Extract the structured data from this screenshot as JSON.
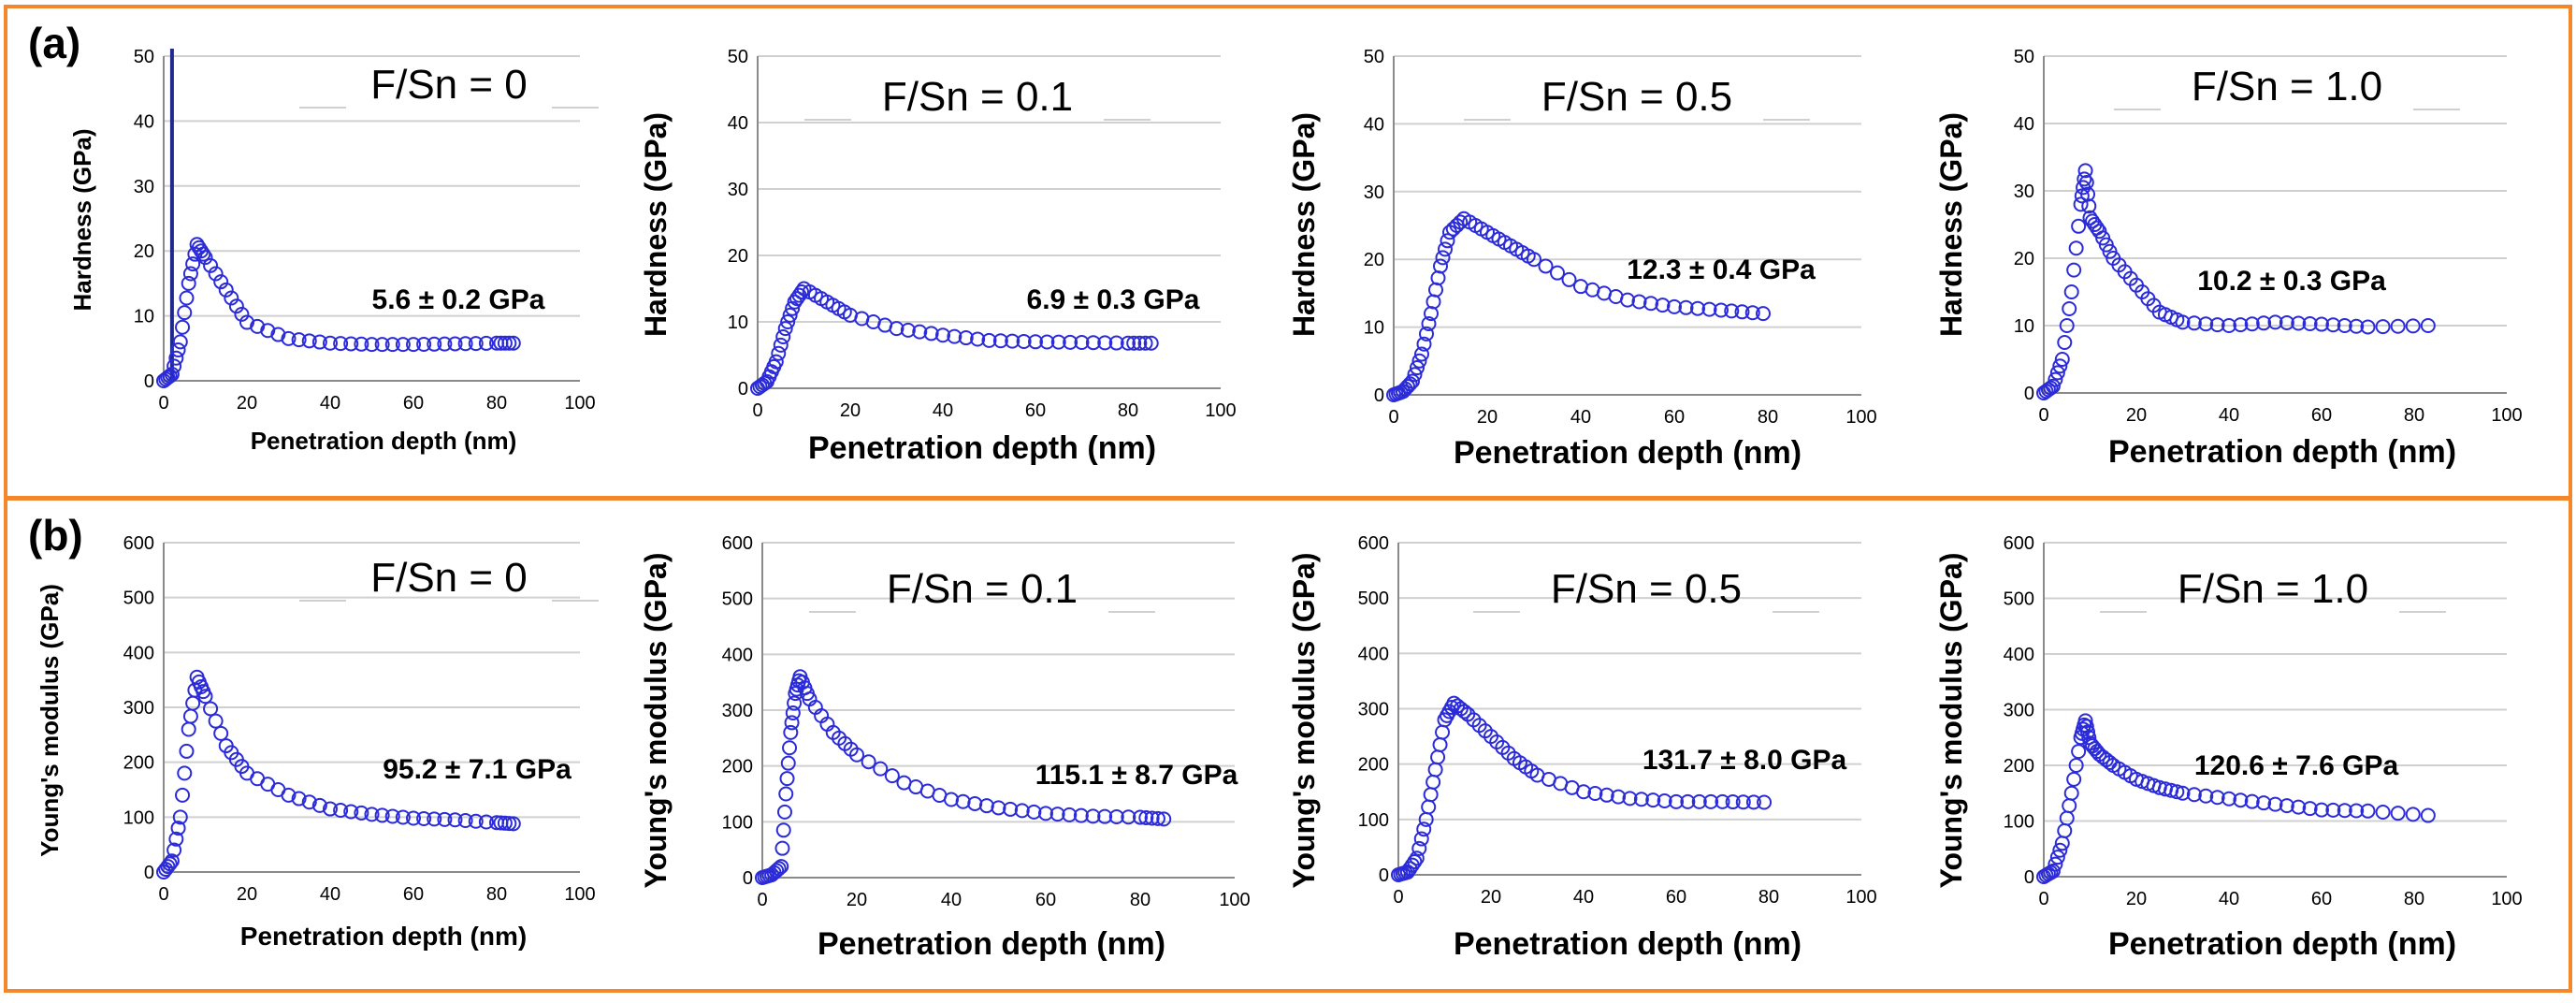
{
  "panels": [
    {
      "label": "(a)",
      "frame_color": "#f4862b"
    },
    {
      "label": "(b)",
      "frame_color": "#f4862b"
    }
  ],
  "marker_color": "#2b2bd9",
  "chart_data": [
    {
      "type": "scatter",
      "panel": "(a)",
      "title": "F/Sn = 0",
      "xlabel": "Penetration depth (nm)",
      "ylabel": "Hardness (GPa)",
      "xlim": [
        0,
        100
      ],
      "ylim": [
        0,
        50
      ],
      "xticks": [
        0,
        20,
        40,
        60,
        80,
        100
      ],
      "yticks": [
        0,
        10,
        20,
        30,
        40,
        50
      ],
      "annotation": "5.6 ± 0.2 GPa",
      "vline_x": 2,
      "series": [
        {
          "name": "F/Sn = 0",
          "x": [
            0,
            2,
            4,
            6,
            8,
            10,
            15,
            20,
            30,
            40,
            50,
            60,
            70,
            80,
            84
          ],
          "y": [
            0,
            1,
            6,
            15,
            21,
            19,
            14,
            9,
            6.5,
            5.8,
            5.6,
            5.6,
            5.7,
            5.8,
            5.8
          ]
        }
      ]
    },
    {
      "type": "scatter",
      "panel": "(a)",
      "title": "F/Sn = 0.1",
      "xlabel": "Penetration depth (nm)",
      "ylabel": "Hardness (GPa)",
      "xlim": [
        0,
        100
      ],
      "ylim": [
        0,
        50
      ],
      "xticks": [
        0,
        20,
        40,
        60,
        80,
        100
      ],
      "yticks": [
        0,
        10,
        20,
        30,
        40,
        50
      ],
      "annotation": "6.9 ± 0.3 GPa",
      "series": [
        {
          "name": "F/Sn = 0.1",
          "x": [
            0,
            2,
            4,
            6,
            8,
            10,
            15,
            20,
            30,
            40,
            50,
            60,
            70,
            80,
            85
          ],
          "y": [
            0,
            1,
            4,
            9,
            13,
            15,
            13,
            11,
            9,
            8,
            7.2,
            7,
            6.9,
            6.8,
            6.8
          ]
        }
      ]
    },
    {
      "type": "scatter",
      "panel": "(a)",
      "title": "F/Sn = 0.5",
      "xlabel": "Penetration depth (nm)",
      "ylabel": "Hardness (GPa)",
      "xlim": [
        0,
        100
      ],
      "ylim": [
        0,
        50
      ],
      "xticks": [
        0,
        20,
        40,
        60,
        80,
        100
      ],
      "yticks": [
        0,
        10,
        20,
        30,
        40,
        50
      ],
      "annotation": "12.3 ± 0.4 GPa",
      "series": [
        {
          "name": "F/Sn = 0.5",
          "x": [
            0,
            2,
            4,
            6,
            8,
            10,
            12,
            15,
            20,
            25,
            30,
            40,
            50,
            60,
            70,
            79
          ],
          "y": [
            0,
            0.5,
            2,
            6,
            12,
            19,
            24,
            26,
            24,
            22,
            20,
            16,
            14,
            13,
            12.5,
            12
          ]
        }
      ]
    },
    {
      "type": "scatter",
      "panel": "(a)",
      "title": "F/Sn = 1.0",
      "xlabel": "Penetration depth (nm)",
      "ylabel": "Hardness (GPa)",
      "xlim": [
        0,
        100
      ],
      "ylim": [
        0,
        50
      ],
      "xticks": [
        0,
        20,
        40,
        60,
        80,
        100
      ],
      "yticks": [
        0,
        10,
        20,
        30,
        40,
        50
      ],
      "annotation": "10.2 ± 0.3 GPa",
      "series": [
        {
          "name": "F/Sn = 1.0",
          "x": [
            0,
            2,
            4,
            6,
            8,
            9,
            10,
            12,
            15,
            20,
            25,
            30,
            40,
            50,
            60,
            70,
            83
          ],
          "y": [
            0,
            1,
            5,
            15,
            28,
            33,
            26,
            24,
            20,
            16,
            12,
            10.5,
            10,
            10.5,
            10.2,
            9.8,
            10
          ]
        }
      ]
    },
    {
      "type": "scatter",
      "panel": "(b)",
      "title": "F/Sn = 0",
      "xlabel": "Penetration depth (nm)",
      "ylabel": "Young's modulus (GPa)",
      "xlim": [
        0,
        100
      ],
      "ylim": [
        0,
        600
      ],
      "xticks": [
        0,
        20,
        40,
        60,
        80,
        100
      ],
      "yticks": [
        0,
        100,
        200,
        300,
        400,
        500,
        600
      ],
      "annotation": "95.2 ± 7.1 GPa",
      "series": [
        {
          "name": "F/Sn = 0",
          "x": [
            0,
            2,
            4,
            6,
            8,
            10,
            15,
            20,
            30,
            40,
            50,
            60,
            70,
            80,
            84
          ],
          "y": [
            0,
            20,
            100,
            260,
            355,
            320,
            230,
            180,
            140,
            115,
            105,
            98,
            95,
            90,
            88
          ]
        }
      ]
    },
    {
      "type": "scatter",
      "panel": "(b)",
      "title": "F/Sn = 0.1",
      "xlabel": "Penetration depth (nm)",
      "ylabel": "Young's modulus (GPa)",
      "xlim": [
        0,
        100
      ],
      "ylim": [
        0,
        600
      ],
      "xticks": [
        0,
        20,
        40,
        60,
        80,
        100
      ],
      "yticks": [
        0,
        100,
        200,
        300,
        400,
        500,
        600
      ],
      "annotation": "115.1 ± 8.7 GPa",
      "series": [
        {
          "name": "F/Sn = 0.1",
          "x": [
            0,
            2,
            4,
            5,
            6,
            7,
            8,
            10,
            15,
            20,
            30,
            40,
            50,
            60,
            70,
            80,
            85
          ],
          "y": [
            0,
            5,
            20,
            150,
            260,
            330,
            360,
            320,
            260,
            220,
            170,
            140,
            125,
            115,
            110,
            108,
            105
          ]
        }
      ]
    },
    {
      "type": "scatter",
      "panel": "(b)",
      "title": "F/Sn = 0.5",
      "xlabel": "Penetration depth (nm)",
      "ylabel": "Young's modulus (GPa)",
      "xlim": [
        0,
        100
      ],
      "ylim": [
        0,
        600
      ],
      "xticks": [
        0,
        20,
        40,
        60,
        80,
        100
      ],
      "yticks": [
        0,
        100,
        200,
        300,
        400,
        500,
        600
      ],
      "annotation": "131.7 ± 8.0 GPa",
      "series": [
        {
          "name": "F/Sn = 0.5",
          "x": [
            0,
            2,
            4,
            6,
            8,
            10,
            12,
            15,
            20,
            25,
            30,
            40,
            50,
            60,
            70,
            79
          ],
          "y": [
            0,
            5,
            30,
            100,
            190,
            280,
            310,
            290,
            250,
            210,
            180,
            150,
            138,
            132,
            132,
            131
          ]
        }
      ]
    },
    {
      "type": "scatter",
      "panel": "(b)",
      "title": "F/Sn = 1.0",
      "xlabel": "Penetration depth (nm)",
      "ylabel": "Young's modulus (GPa)",
      "xlim": [
        0,
        100
      ],
      "ylim": [
        0,
        600
      ],
      "xticks": [
        0,
        20,
        40,
        60,
        80,
        100
      ],
      "yticks": [
        0,
        100,
        200,
        300,
        400,
        500,
        600
      ],
      "annotation": "120.6 ± 7.6 GPa",
      "series": [
        {
          "name": "F/Sn = 1.0",
          "x": [
            0,
            2,
            4,
            6,
            8,
            9,
            10,
            12,
            15,
            20,
            25,
            30,
            40,
            50,
            60,
            70,
            83
          ],
          "y": [
            0,
            10,
            60,
            150,
            250,
            280,
            240,
            220,
            200,
            175,
            160,
            150,
            140,
            130,
            120,
            118,
            110
          ]
        }
      ]
    }
  ]
}
